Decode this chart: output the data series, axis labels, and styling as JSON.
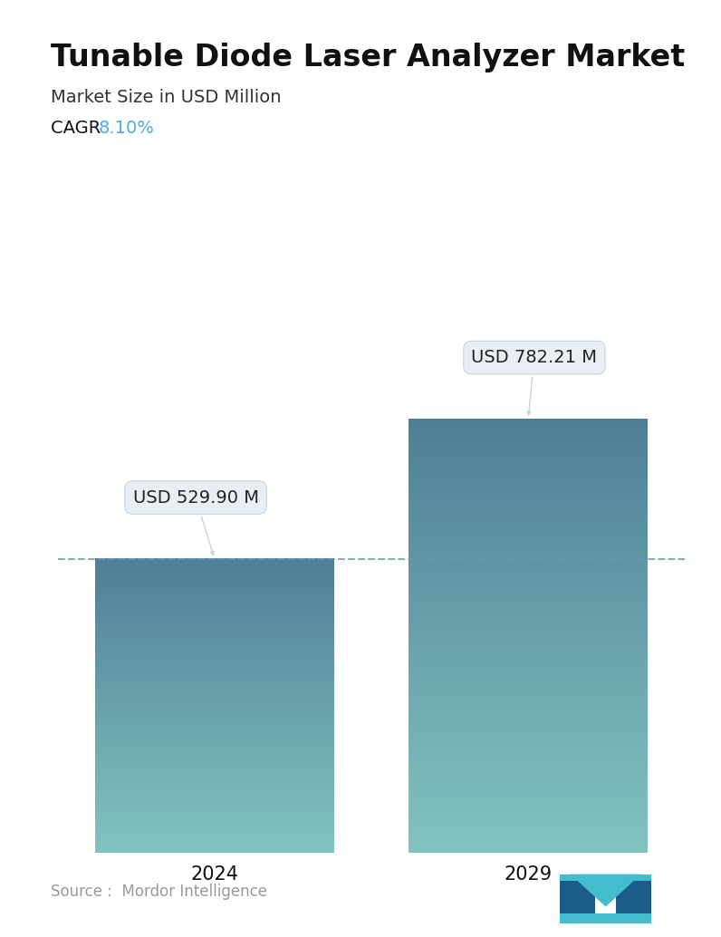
{
  "title": "Tunable Diode Laser Analyzer Market",
  "subtitle": "Market Size in USD Million",
  "cagr_label": "CAGR ",
  "cagr_value": "8.10%",
  "cagr_color": "#4AACE8",
  "categories": [
    "2024",
    "2029"
  ],
  "values": [
    529.9,
    782.21
  ],
  "labels": [
    "USD 529.90 M",
    "USD 782.21 M"
  ],
  "bar_top_color": "#4F7F97",
  "bar_bottom_color": "#82C4C0",
  "dashed_line_color": "#6899AA",
  "source_text": "Source :  Mordor Intelligence",
  "source_color": "#999999",
  "background_color": "#ffffff",
  "title_fontsize": 24,
  "subtitle_fontsize": 14,
  "cagr_fontsize": 14,
  "xlabel_fontsize": 15,
  "annotation_fontsize": 14,
  "source_fontsize": 12,
  "ylim": [
    0,
    980
  ],
  "bar_width": 0.38,
  "positions": [
    0.25,
    0.75
  ]
}
